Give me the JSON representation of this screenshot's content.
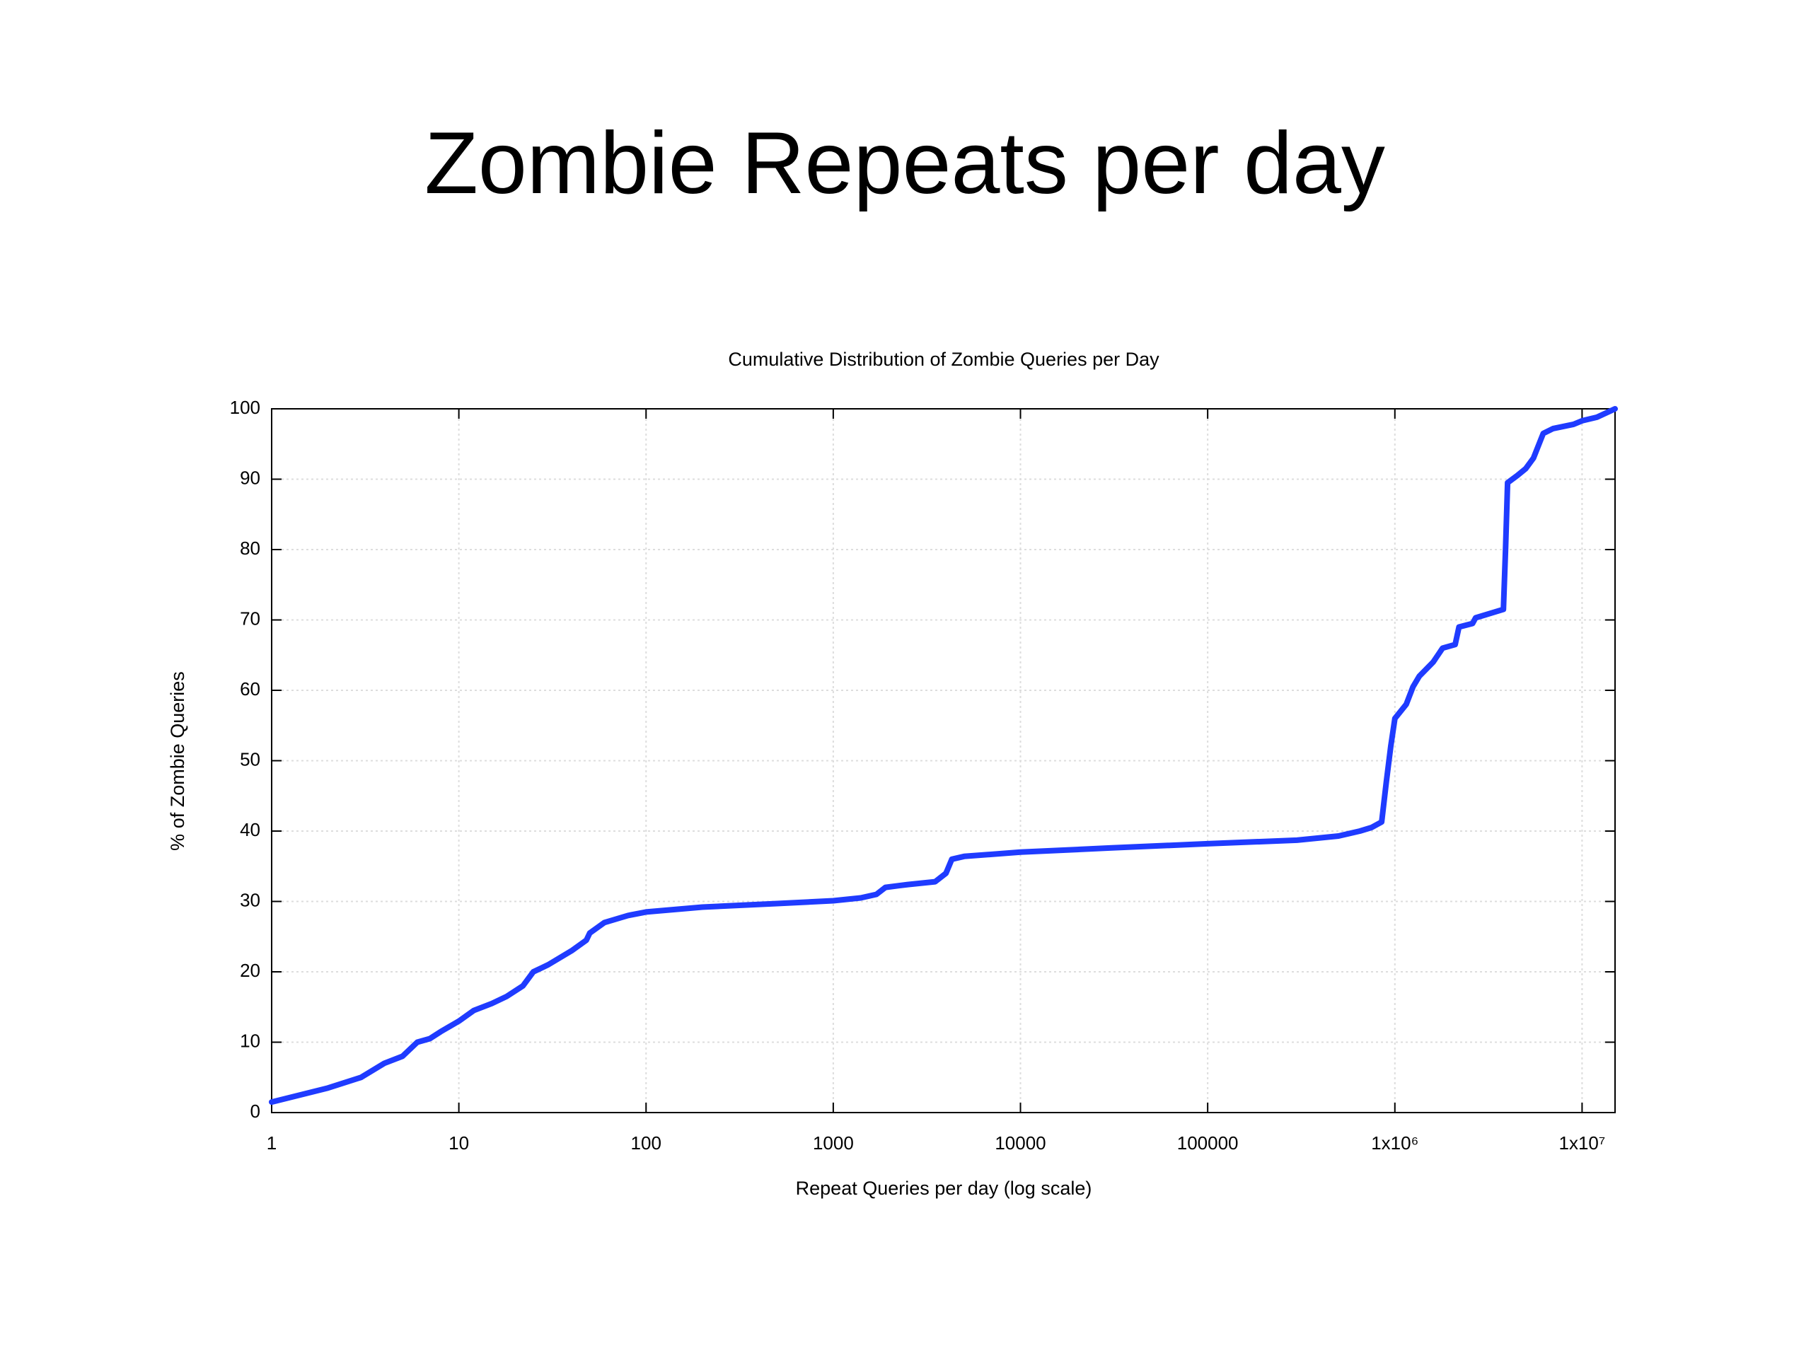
{
  "slide_title": "Zombie Repeats per day",
  "chart_data": {
    "type": "line",
    "title": "Cumulative Distribution of Zombie Queries per Day",
    "x_label": "Repeat Queries per day (log scale)",
    "y_label": "% of Zombie Queries",
    "x_scale": "log",
    "grid": true,
    "xlim": [
      1,
      15000000
    ],
    "ylim": [
      0,
      100
    ],
    "xticks": [
      1,
      10,
      100,
      1000,
      10000,
      100000,
      {
        "value": 1000000,
        "label": "1x10⁶"
      },
      {
        "value": 10000000,
        "label": "1x10⁷"
      }
    ],
    "yticks": [
      0,
      10,
      20,
      30,
      40,
      50,
      60,
      70,
      80,
      90,
      100
    ],
    "x": [
      1,
      2,
      3,
      4,
      5,
      6,
      7,
      8,
      10,
      12,
      15,
      18,
      22,
      25,
      30,
      40,
      48,
      50,
      60,
      80,
      100,
      200,
      500,
      1000,
      1400,
      1700,
      1900,
      2500,
      3500,
      4000,
      4300,
      5000,
      10000,
      30000,
      100000,
      300000,
      500000,
      650000,
      750000,
      850000,
      900000,
      950000,
      1000000,
      1150000,
      1250000,
      1350000,
      1600000,
      1800000,
      2100000,
      2200000,
      2600000,
      2700000,
      3800000,
      3900000,
      4000000,
      4500000,
      5000000,
      5500000,
      6200000,
      7000000,
      9000000,
      10000000,
      12000000,
      15000000
    ],
    "series": [
      {
        "color": "#1f3bff",
        "values": [
          1.5,
          3.5,
          5,
          7,
          8,
          10,
          10.5,
          11.5,
          13,
          14.5,
          15.5,
          16.5,
          18,
          20,
          21,
          23,
          24.5,
          25.5,
          27,
          28,
          28.5,
          29.2,
          29.7,
          30.1,
          30.5,
          31,
          32,
          32.4,
          32.8,
          34,
          36,
          36.4,
          37,
          37.6,
          38.2,
          38.7,
          39.3,
          40,
          40.5,
          41.3,
          47,
          52,
          56,
          58,
          60.5,
          62,
          64,
          66,
          66.5,
          69,
          69.5,
          70.3,
          71.5,
          80,
          89.5,
          90.5,
          91.5,
          93,
          96.5,
          97.2,
          97.8,
          98.3,
          98.8,
          100
        ]
      }
    ]
  }
}
